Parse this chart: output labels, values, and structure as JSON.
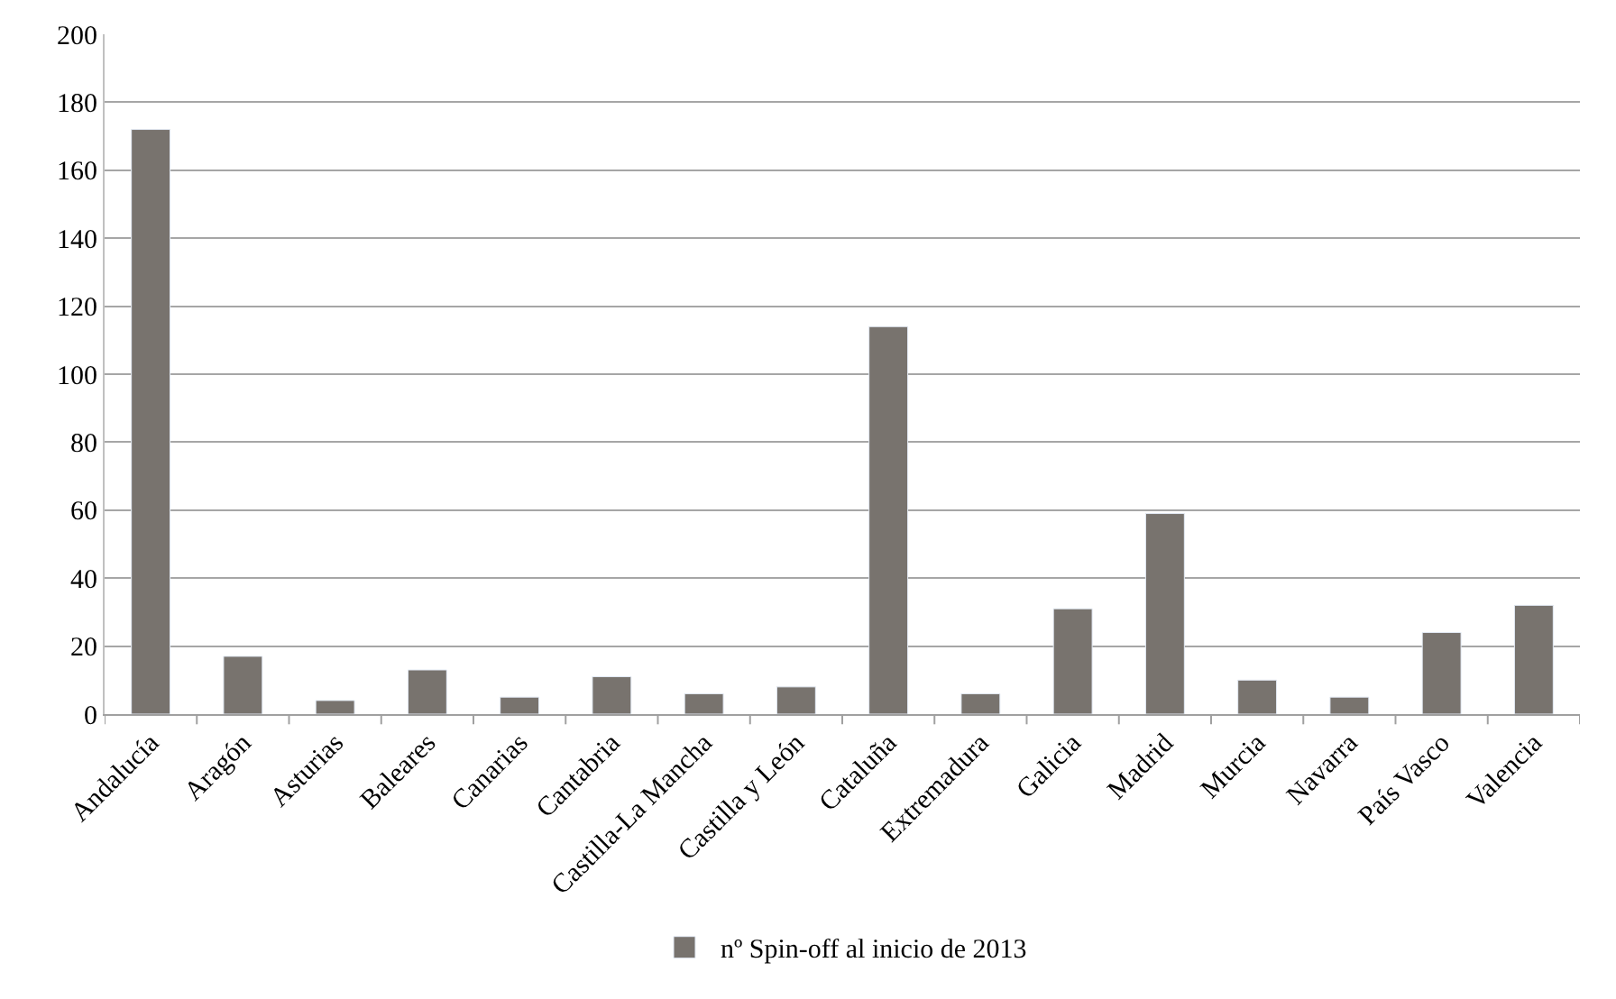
{
  "chart_data": {
    "type": "bar",
    "categories": [
      "Andalucía",
      "Aragón",
      "Asturias",
      "Baleares",
      "Canarias",
      "Cantabria",
      "Castilla-La Mancha",
      "Castilla y León",
      "Cataluña",
      "Extremadura",
      "Galicia",
      "Madrid",
      "Murcia",
      "Navarra",
      "País Vasco",
      "Valencia"
    ],
    "series": [
      {
        "name": "nº Spin-off al inicio de 2013",
        "color": "#78736e",
        "values": [
          172,
          17,
          4,
          13,
          5,
          11,
          6,
          8,
          114,
          6,
          31,
          59,
          10,
          5,
          24,
          32
        ]
      }
    ],
    "ylim": [
      0,
      200
    ],
    "yticks": [
      0,
      20,
      40,
      60,
      80,
      100,
      120,
      140,
      160,
      180,
      200
    ],
    "grid": "y",
    "legend": "bottom"
  }
}
